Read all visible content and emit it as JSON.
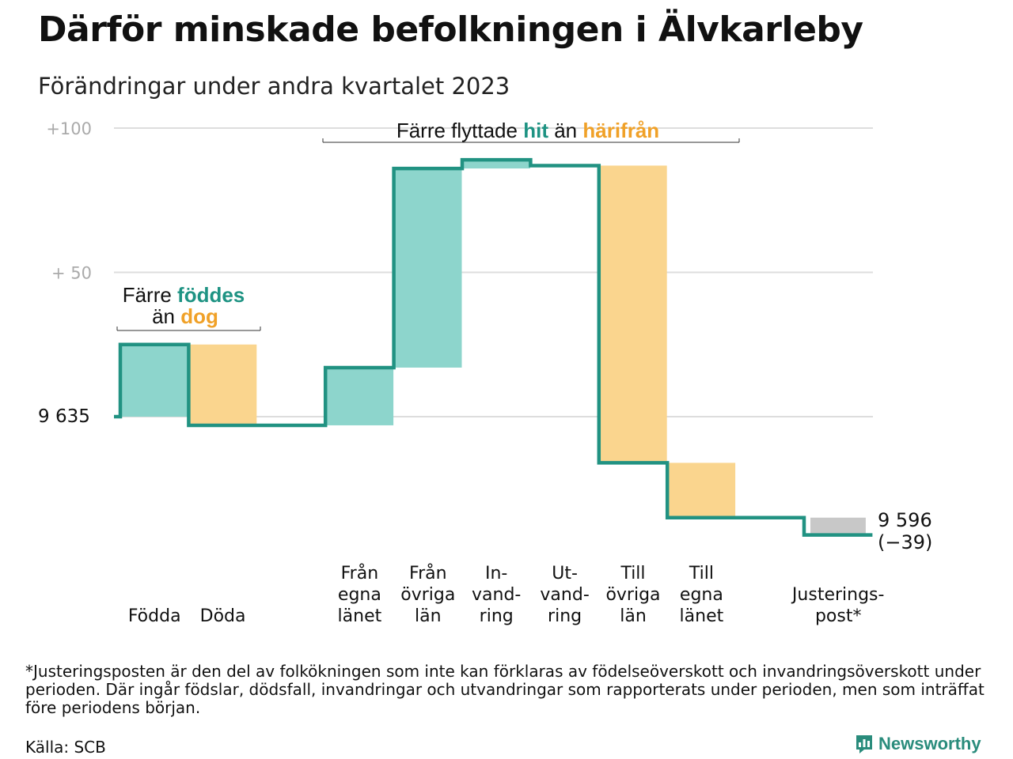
{
  "title": "Därför minskade befolkningen i Älvkarleby",
  "subtitle": "Förändringar under andra kvartalet 2023",
  "colors": {
    "inflow": "#8dd5cc",
    "outflow": "#fad58e",
    "adjustment": "#c8c8c8",
    "line": "#219282",
    "accent_green": "#1e9383",
    "accent_orange": "#f0a128",
    "grid": "#dddddd",
    "axis_text": "#aaaaaa"
  },
  "chart_data": {
    "type": "waterfall",
    "start_value": 9635,
    "start_label": "9  635",
    "end_value": 9596,
    "end_label": "9 596",
    "end_change_label": "(−39)",
    "y_ticks": [
      {
        "value": 100,
        "label": "+100"
      },
      {
        "value": 50,
        "label": "+  50"
      }
    ],
    "ylim": [
      -45,
      100
    ],
    "grid": true,
    "steps": [
      {
        "label_lines": [
          "Födda"
        ],
        "change": 25,
        "kind": "inflow"
      },
      {
        "label_lines": [
          "Döda"
        ],
        "change": -28,
        "kind": "outflow"
      },
      {
        "label_lines": [],
        "change": 0,
        "kind": "spacer"
      },
      {
        "label_lines": [
          "Från",
          "egna",
          "länet"
        ],
        "change": 20,
        "kind": "inflow"
      },
      {
        "label_lines": [
          "Från",
          "övriga",
          "län"
        ],
        "change": 69,
        "kind": "inflow"
      },
      {
        "label_lines": [
          "In-",
          "vand-",
          "ring"
        ],
        "change": 3,
        "kind": "inflow"
      },
      {
        "label_lines": [
          "Ut-",
          "vand-",
          "ring"
        ],
        "change": -2,
        "kind": "outflow_hidden"
      },
      {
        "label_lines": [
          "Till",
          "övriga",
          "län"
        ],
        "change": -103,
        "kind": "outflow"
      },
      {
        "label_lines": [
          "Till",
          "egna",
          "länet"
        ],
        "change": -19,
        "kind": "outflow"
      },
      {
        "label_lines": [],
        "change": 0,
        "kind": "spacer"
      },
      {
        "label_lines": [
          "Justerings-",
          "post*"
        ],
        "change": -6,
        "kind": "adjustment"
      }
    ],
    "annotations": [
      {
        "parts": [
          [
            "Färre ",
            "plain"
          ],
          [
            "föddes",
            "green"
          ]
        ],
        "parts2": [
          [
            "än ",
            "plain"
          ],
          [
            "dog",
            "orange"
          ]
        ]
      },
      {
        "parts": [
          [
            "Färre flyttade ",
            "plain"
          ],
          [
            "hit",
            "green"
          ],
          [
            " än ",
            "plain"
          ],
          [
            "härifrån",
            "orange"
          ]
        ]
      }
    ]
  },
  "footnote": "*Justeringsposten är den del av folkökningen som inte kan förklaras av födelseöverskott och invandringsöverskott under perioden. Där ingår födslar, dödsfall, invandringar och utvandringar som rapporterats under perioden, men som inträffat före periodens början.",
  "source": "Källa: SCB",
  "logo_text": "Newsworthy",
  "logo_icon": "newsworthy-chart-icon"
}
